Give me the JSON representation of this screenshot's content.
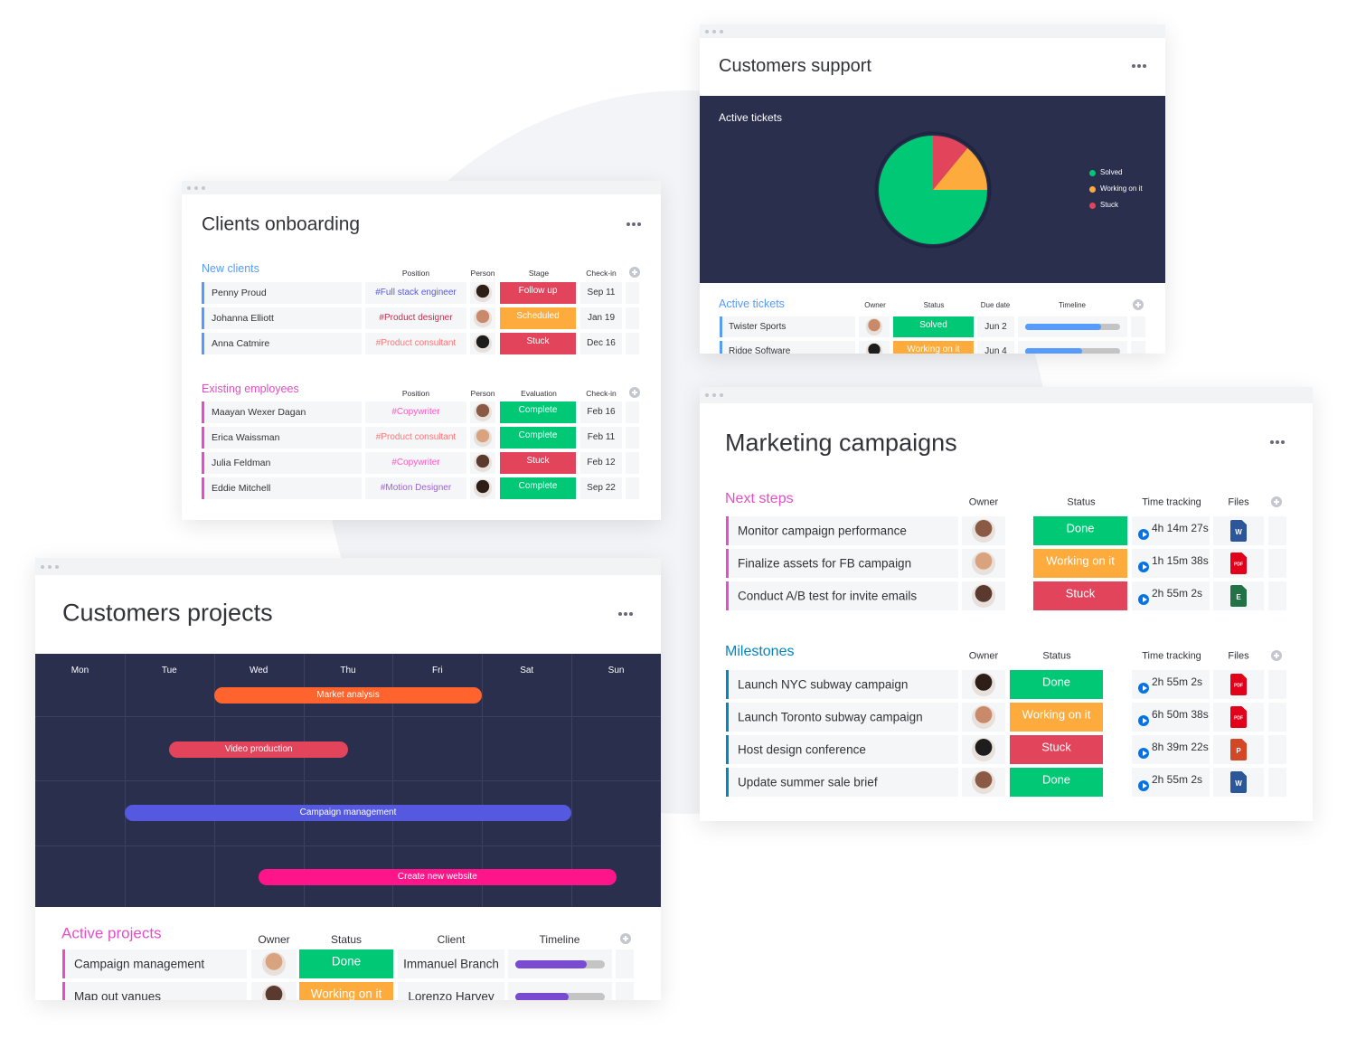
{
  "clients_onboarding": {
    "title": "Clients onboarding",
    "groups": [
      {
        "name": "New clients",
        "color": "#579bfc",
        "columns": [
          "Position",
          "Person",
          "Stage",
          "Check-in"
        ],
        "rows": [
          {
            "name": "Penny Proud",
            "position": "#Full stack engineer",
            "position_color": "#5559df",
            "status": "Follow up",
            "status_color": "#e2445c",
            "date": "Sep 11"
          },
          {
            "name": "Johanna Elliott",
            "position": "#Product designer",
            "position_color": "#bb3354",
            "status": "Scheduled",
            "status_color": "#fdab3d",
            "date": "Jan 19"
          },
          {
            "name": "Anna Catmire",
            "position": "#Product consultant",
            "position_color": "#ff7575",
            "status": "Stuck",
            "status_color": "#e2445c",
            "date": "Dec 16"
          }
        ]
      },
      {
        "name": "Existing employees",
        "color": "#e44fc8",
        "columns": [
          "Position",
          "Person",
          "Evaluation",
          "Check-in"
        ],
        "rows": [
          {
            "name": "Maayan Wexer Dagan",
            "position": "#Copywriter",
            "position_color": "#ff5ac4",
            "status": "Complete",
            "status_color": "#00c875",
            "date": "Feb 16"
          },
          {
            "name": "Erica Waissman",
            "position": "#Product consultant",
            "position_color": "#ff7575",
            "status": "Complete",
            "status_color": "#00c875",
            "date": "Feb 11"
          },
          {
            "name": "Julia Feldman",
            "position": "#Copywriter",
            "position_color": "#ff5ac4",
            "status": "Stuck",
            "status_color": "#e2445c",
            "date": "Feb 12"
          },
          {
            "name": "Eddie Mitchell",
            "position": "#Motion Designer",
            "position_color": "#a25ddc",
            "status": "Complete",
            "status_color": "#00c875",
            "date": "Sep 22"
          }
        ]
      }
    ]
  },
  "customers_support": {
    "title": "Customers support",
    "table": {
      "name": "Active tickets",
      "color": "#579bfc",
      "timeline_color": "#579bfc",
      "columns": [
        "Owner",
        "Status",
        "Due date",
        "Timeline"
      ],
      "rows": [
        {
          "name": "Twister Sports",
          "status": "Solved",
          "status_color": "#00c875",
          "date": "Jun 2",
          "timeline": 80
        },
        {
          "name": "Ridge Software",
          "status": "Working on it",
          "status_color": "#fdab3d",
          "date": "Jun 4",
          "timeline": 60
        }
      ]
    }
  },
  "chart_data": {
    "type": "pie",
    "title": "Active tickets",
    "categories": [
      "Solved",
      "Working on it",
      "Stuck"
    ],
    "values": [
      75,
      14,
      11
    ],
    "colors": [
      "#00c875",
      "#fdab3d",
      "#e2445c"
    ]
  },
  "marketing_campaigns": {
    "title": "Marketing campaigns",
    "groups": [
      {
        "name": "Next steps",
        "color": "#e44fc8",
        "columns": [
          "Owner",
          "Status",
          "Time tracking",
          "Files"
        ],
        "rows": [
          {
            "name": "Monitor campaign performance",
            "status": "Done",
            "status_color": "#00c875",
            "time": "4h 14m 27s",
            "file": {
              "label": "W",
              "color": "#2b579a"
            }
          },
          {
            "name": "Finalize assets for FB campaign",
            "status": "Working on it",
            "status_color": "#fdab3d",
            "time": "1h 15m 38s",
            "file": {
              "label": "PDF",
              "color": "#e2001a"
            }
          },
          {
            "name": "Conduct A/B test for invite emails",
            "status": "Stuck",
            "status_color": "#e2445c",
            "time": "2h 55m 2s",
            "file": {
              "label": "E",
              "color": "#217346"
            }
          }
        ]
      },
      {
        "name": "Milestones",
        "color": "#0086c0",
        "columns": [
          "Owner",
          "Status",
          "Time tracking",
          "Files"
        ],
        "rows": [
          {
            "name": "Launch NYC subway campaign",
            "status": "Done",
            "status_color": "#00c875",
            "time": "2h 55m 2s",
            "file": {
              "label": "PDF",
              "color": "#e2001a"
            }
          },
          {
            "name": "Launch Toronto subway campaign",
            "status": "Working on it",
            "status_color": "#fdab3d",
            "time": "6h 50m 38s",
            "file": {
              "label": "PDF",
              "color": "#e2001a"
            }
          },
          {
            "name": "Host design conference",
            "status": "Stuck",
            "status_color": "#e2445c",
            "time": "8h 39m 22s",
            "file": {
              "label": "P",
              "color": "#d24726"
            }
          },
          {
            "name": "Update summer sale brief",
            "status": "Done",
            "status_color": "#00c875",
            "time": "2h 55m 2s",
            "file": {
              "label": "W",
              "color": "#2b579a"
            }
          }
        ]
      }
    ]
  },
  "customers_projects": {
    "title": "Customers projects",
    "days": [
      "Mon",
      "Tue",
      "Wed",
      "Thu",
      "Fri",
      "Sat",
      "Sun"
    ],
    "bars": [
      {
        "label": "Market analysis",
        "start": 2,
        "end": 5,
        "color": "#ff642e"
      },
      {
        "label": "Video production",
        "start": 1.5,
        "end": 3.5,
        "color": "#e2445c"
      },
      {
        "label": "Campaign management",
        "start": 1,
        "end": 6,
        "color": "#5559df"
      },
      {
        "label": "Create new website",
        "start": 2.5,
        "end": 6.5,
        "color": "#ff158a"
      }
    ],
    "table": {
      "name": "Active projects",
      "color": "#e44fc8",
      "timeline_color": "#784bd1",
      "columns": [
        "Owner",
        "Status",
        "Client",
        "Timeline"
      ],
      "rows": [
        {
          "name": "Campaign management",
          "status": "Done",
          "status_color": "#00c875",
          "client": "Immanuel Branch",
          "timeline": 80
        },
        {
          "name": "Map out vanues",
          "status": "Working on it",
          "status_color": "#fdab3d",
          "client": "Lorenzo Harvey",
          "timeline": 60
        }
      ]
    }
  }
}
